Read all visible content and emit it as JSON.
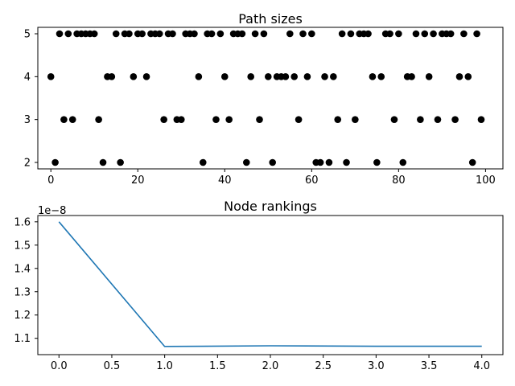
{
  "chart_data": [
    {
      "type": "scatter",
      "title": "Path sizes",
      "xlabel": "",
      "ylabel": "",
      "xlim": [
        -3,
        104
      ],
      "ylim": [
        1.85,
        5.15
      ],
      "xticks": [
        0,
        20,
        40,
        60,
        80,
        100
      ],
      "yticks": [
        2,
        3,
        4,
        5
      ],
      "marker_color": "#000000",
      "x": [
        0,
        1,
        2,
        3,
        4,
        5,
        6,
        7,
        8,
        9,
        10,
        11,
        12,
        13,
        14,
        15,
        16,
        17,
        18,
        19,
        20,
        21,
        22,
        23,
        24,
        25,
        26,
        27,
        28,
        29,
        30,
        31,
        32,
        33,
        34,
        35,
        36,
        37,
        38,
        39,
        40,
        41,
        42,
        43,
        44,
        45,
        46,
        47,
        48,
        49,
        50,
        51,
        52,
        53,
        54,
        55,
        56,
        57,
        58,
        59,
        60,
        61,
        62,
        63,
        64,
        65,
        66,
        67,
        68,
        69,
        70,
        71,
        72,
        73,
        74,
        75,
        76,
        77,
        78,
        79,
        80,
        81,
        82,
        83,
        84,
        85,
        86,
        87,
        88,
        89,
        90,
        91,
        92,
        93,
        94,
        95,
        96,
        97,
        98,
        99
      ],
      "y": [
        4,
        2,
        5,
        3,
        5,
        3,
        5,
        5,
        5,
        5,
        5,
        3,
        2,
        4,
        4,
        5,
        2,
        5,
        5,
        4,
        5,
        5,
        4,
        5,
        5,
        5,
        3,
        5,
        5,
        3,
        3,
        5,
        5,
        5,
        4,
        2,
        5,
        5,
        3,
        5,
        4,
        3,
        5,
        5,
        5,
        2,
        4,
        5,
        3,
        5,
        4,
        2,
        4,
        4,
        4,
        5,
        4,
        3,
        5,
        4,
        5,
        2,
        2,
        4,
        2,
        4,
        3,
        5,
        2,
        5,
        3,
        5,
        5,
        5,
        4,
        2,
        4,
        5,
        5,
        3,
        5,
        2,
        4,
        4,
        5,
        3,
        5,
        4,
        5,
        3,
        5,
        5,
        5,
        3,
        4,
        5,
        4,
        2,
        5,
        3
      ]
    },
    {
      "type": "line",
      "title": "Node rankings",
      "xlabel": "",
      "ylabel": "",
      "offset_label": "1e−8",
      "xlim": [
        -0.2,
        4.2
      ],
      "ylim": [
        1.03,
        1.627
      ],
      "xticks": [
        "0.0",
        "0.5",
        "1.0",
        "1.5",
        "2.0",
        "2.5",
        "3.0",
        "3.5",
        "4.0"
      ],
      "yticks": [
        "1.1",
        "1.2",
        "1.3",
        "1.4",
        "1.5",
        "1.6"
      ],
      "line_color": "#1f77b4",
      "x": [
        0,
        1,
        2,
        3,
        4
      ],
      "y": [
        1.6,
        1.065,
        1.068,
        1.066,
        1.066
      ]
    }
  ]
}
